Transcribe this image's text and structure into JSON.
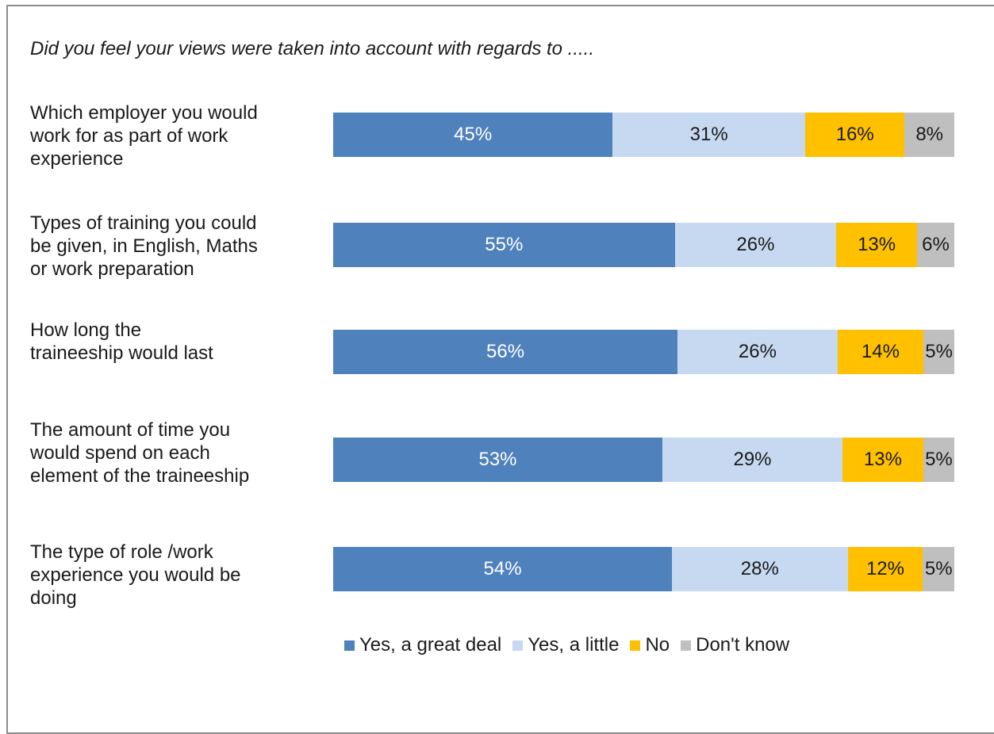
{
  "chart_data": {
    "type": "bar",
    "orientation": "horizontal",
    "stacked": true,
    "title": "Did you feel your views were taken into account with regards to .....",
    "categories": [
      "Which employer you would work for as part of work experience",
      "Types of training you could be given, in English, Maths or work preparation",
      "How long the traineeship would last",
      "The amount of time you would spend on each element of the traineeship",
      "The type of role /work experience you would be doing"
    ],
    "category_lines": [
      [
        "Which employer you would",
        "work for as part of work",
        "experience"
      ],
      [
        "Types of training you could",
        "be given, in English, Maths",
        "or work preparation"
      ],
      [
        "How long the",
        "traineeship would last"
      ],
      [
        "The amount of time you",
        "would spend on each",
        "element of the traineeship"
      ],
      [
        "The type of role /work",
        "experience you would be",
        "doing"
      ]
    ],
    "series": [
      {
        "name": "Yes, a great deal",
        "color": "#4f81bd",
        "text_color": "#ffffff",
        "values": [
          45,
          55,
          56,
          53,
          54
        ]
      },
      {
        "name": "Yes, a little",
        "color": "#c6d9f1",
        "text_color": "#1a1a1a",
        "values": [
          31,
          26,
          26,
          29,
          28
        ]
      },
      {
        "name": "No",
        "color": "#ffc000",
        "text_color": "#1a1a1a",
        "values": [
          16,
          13,
          14,
          13,
          12
        ]
      },
      {
        "name": "Don't know",
        "color": "#bfbfbf",
        "text_color": "#1a1a1a",
        "values": [
          8,
          6,
          5,
          5,
          5
        ]
      }
    ],
    "data_label_suffix": "%",
    "legend_position": "bottom"
  }
}
